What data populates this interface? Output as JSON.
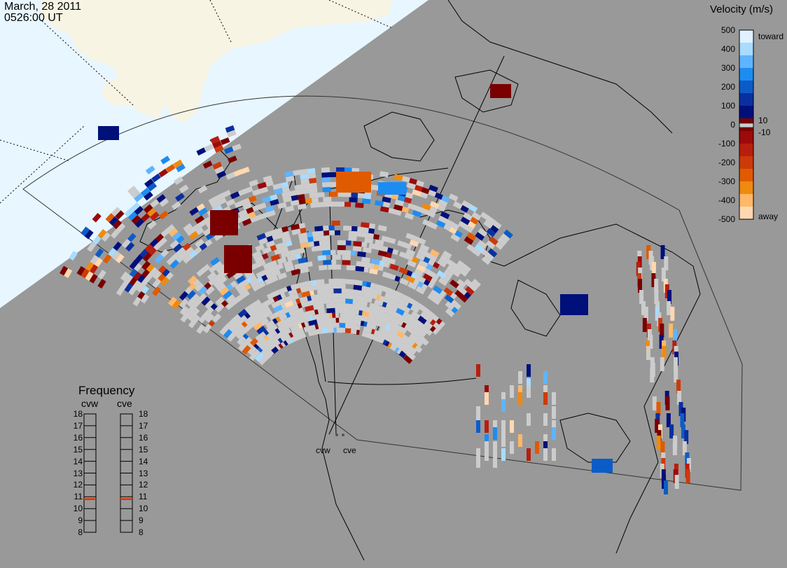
{
  "header": {
    "date": "March, 28 2011",
    "time": "0526:00 UT"
  },
  "velocity_scale": {
    "title": "Velocity (m/s)",
    "ticks": [
      "500",
      "400",
      "300",
      "200",
      "100",
      "0",
      "-100",
      "-200",
      "-300",
      "-400",
      "-500"
    ],
    "inner_ticks": [
      "10",
      "-10"
    ],
    "toward_label": "toward",
    "away_label": "away",
    "colors": [
      "#e0f2ff",
      "#a8dcff",
      "#5fb4ff",
      "#1d8cf0",
      "#0c5cc8",
      "#0a2fa0",
      "#00107a",
      "#7a0000",
      "#9c0a0a",
      "#b81e0e",
      "#cc3a0a",
      "#e05a00",
      "#f08a10",
      "#ffb868",
      "#ffd8b0"
    ],
    "ground_scatter_color": "#cccccc"
  },
  "frequency_panel": {
    "title": "Frequency",
    "radars": [
      {
        "name": "cvw",
        "frequency_mhz": 10.8
      },
      {
        "name": "cve",
        "frequency_mhz": 10.8
      }
    ],
    "scale": [
      "18",
      "17",
      "16",
      "15",
      "14",
      "13",
      "12",
      "11",
      "10",
      "9",
      "8"
    ],
    "marker_color": "#dd3300"
  },
  "radar_sites": [
    "cvw",
    "cve"
  ],
  "map_colors": {
    "background": "#999999",
    "daylight": "#e8f6ff",
    "land_in_daylight": "#f7f4e4",
    "coastline": "#000000",
    "grid": "#000000"
  }
}
